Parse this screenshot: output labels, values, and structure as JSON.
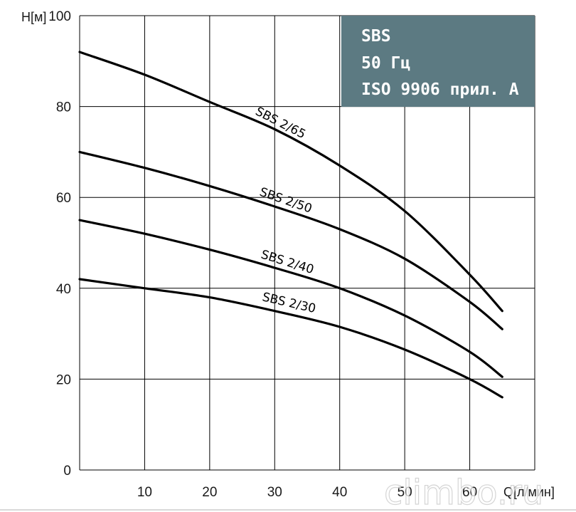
{
  "chart_data": {
    "type": "line",
    "title": "",
    "xlabel": "Q[л/мин]",
    "ylabel": "Н[м]",
    "xlim": [
      0,
      70
    ],
    "ylim": [
      0,
      100
    ],
    "x_ticks": [
      10,
      20,
      30,
      40,
      50,
      60
    ],
    "y_ticks": [
      0,
      20,
      40,
      60,
      80,
      100
    ],
    "grid": true,
    "info_box": {
      "position": "top-right",
      "lines": [
        "SBS",
        "50 Гц",
        "ISO 9906 прил. А"
      ],
      "color": "#5c7a82"
    },
    "series": [
      {
        "name": "SBS 2/65",
        "x": [
          0,
          10,
          20,
          30,
          40,
          50,
          60,
          65
        ],
        "y": [
          92,
          87,
          81,
          75,
          67,
          57,
          43,
          35
        ]
      },
      {
        "name": "SBS 2/50",
        "x": [
          0,
          10,
          20,
          30,
          40,
          50,
          60,
          65
        ],
        "y": [
          70,
          66.5,
          62.5,
          58,
          53,
          46.5,
          37,
          31
        ]
      },
      {
        "name": "SBS 2/40",
        "x": [
          0,
          10,
          20,
          30,
          40,
          50,
          60,
          65
        ],
        "y": [
          55,
          52,
          48.5,
          44.5,
          40,
          34,
          26,
          20.5
        ]
      },
      {
        "name": "SBS 2/30",
        "x": [
          0,
          10,
          20,
          30,
          40,
          50,
          60,
          65
        ],
        "y": [
          42,
          40,
          38,
          35,
          31.5,
          26.5,
          20,
          16
        ]
      }
    ]
  },
  "watermark": "climbo.ru"
}
